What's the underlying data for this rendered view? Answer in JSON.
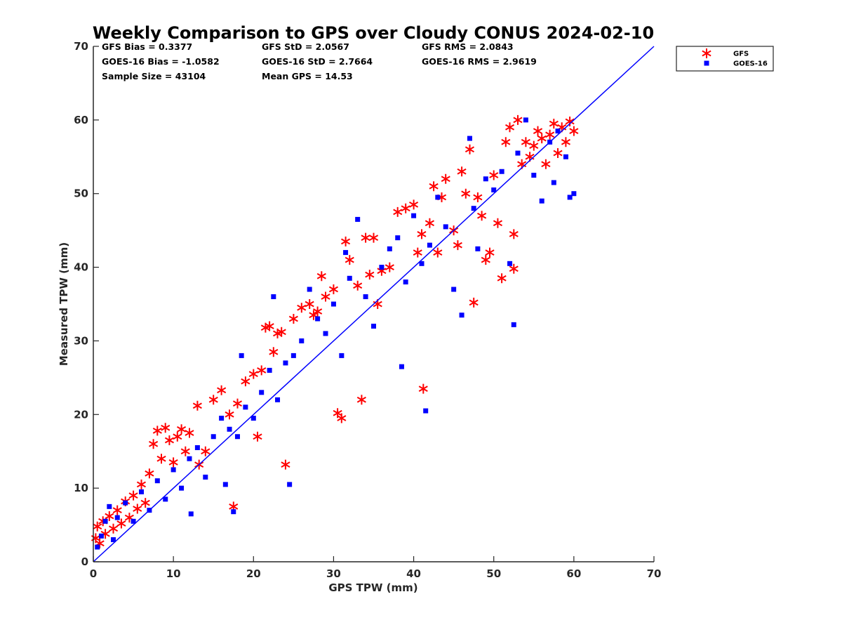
{
  "chart_data": {
    "type": "scatter",
    "title": "Weekly Comparison to GPS over Cloudy CONUS 2024-02-10",
    "xlabel": "GPS TPW (mm)",
    "ylabel": "Measured TPW (mm)",
    "xlim": [
      0,
      70
    ],
    "ylim": [
      0,
      70
    ],
    "xticks": [
      0,
      10,
      20,
      30,
      40,
      50,
      60,
      70
    ],
    "yticks": [
      0,
      10,
      20,
      30,
      40,
      50,
      60,
      70
    ],
    "grid": false,
    "legend_position": "outside-top-right",
    "reference_line": {
      "x": [
        0,
        70
      ],
      "y": [
        0,
        70
      ],
      "color": "#0000ff"
    },
    "stats": [
      [
        "GFS Bias = 0.3377",
        "GFS StD = 2.0567",
        "GFS RMS = 2.0843"
      ],
      [
        "GOES-16 Bias = -1.0582",
        "GOES-16 StD = 2.7664",
        "GOES-16 RMS = 2.9619"
      ],
      [
        "Sample Size = 43104",
        "Mean GPS = 14.53",
        ""
      ]
    ],
    "series": [
      {
        "name": "GFS",
        "marker": "asterisk",
        "color": "#ff0000",
        "points": [
          [
            0.3,
            3.2
          ],
          [
            0.5,
            4.8
          ],
          [
            0.8,
            2.5
          ],
          [
            1.2,
            5.5
          ],
          [
            1.5,
            3.8
          ],
          [
            2.0,
            6.2
          ],
          [
            2.5,
            4.5
          ],
          [
            3.0,
            7.0
          ],
          [
            3.5,
            5.2
          ],
          [
            4.0,
            8.2
          ],
          [
            4.5,
            6.0
          ],
          [
            5.0,
            9.0
          ],
          [
            5.5,
            7.2
          ],
          [
            6.0,
            10.5
          ],
          [
            6.5,
            8.0
          ],
          [
            7.0,
            12.0
          ],
          [
            7.5,
            16.0
          ],
          [
            8.0,
            17.8
          ],
          [
            8.5,
            14.0
          ],
          [
            9.0,
            18.2
          ],
          [
            9.5,
            16.5
          ],
          [
            10,
            13.5
          ],
          [
            10.5,
            17.0
          ],
          [
            11,
            18.0
          ],
          [
            11.5,
            15.0
          ],
          [
            12,
            17.5
          ],
          [
            13,
            21.2
          ],
          [
            13.2,
            13.2
          ],
          [
            14,
            15.0
          ],
          [
            15,
            22.0
          ],
          [
            16,
            23.3
          ],
          [
            17,
            20.0
          ],
          [
            17.5,
            7.5
          ],
          [
            18,
            21.5
          ],
          [
            19,
            24.5
          ],
          [
            20,
            25.5
          ],
          [
            20.5,
            17.0
          ],
          [
            21,
            26.0
          ],
          [
            21.5,
            31.8
          ],
          [
            22,
            32.0
          ],
          [
            22.5,
            28.5
          ],
          [
            23,
            31.0
          ],
          [
            23.5,
            31.2
          ],
          [
            24,
            13.2
          ],
          [
            25,
            33.0
          ],
          [
            26,
            34.5
          ],
          [
            27,
            35.0
          ],
          [
            27.5,
            33.5
          ],
          [
            28,
            34.0
          ],
          [
            28.5,
            38.8
          ],
          [
            29,
            36.0
          ],
          [
            30,
            37.0
          ],
          [
            30.5,
            20.2
          ],
          [
            31,
            19.5
          ],
          [
            31.5,
            43.5
          ],
          [
            32,
            41.0
          ],
          [
            33,
            37.5
          ],
          [
            33.5,
            22.0
          ],
          [
            34,
            44.0
          ],
          [
            34.5,
            39.0
          ],
          [
            35,
            44.0
          ],
          [
            35.5,
            35.0
          ],
          [
            36,
            39.5
          ],
          [
            37,
            40.0
          ],
          [
            38,
            47.5
          ],
          [
            39,
            48.0
          ],
          [
            40,
            48.5
          ],
          [
            40.5,
            42.0
          ],
          [
            41,
            44.5
          ],
          [
            41.2,
            23.5
          ],
          [
            42,
            46.0
          ],
          [
            42.5,
            51.0
          ],
          [
            43,
            42.0
          ],
          [
            43.5,
            49.5
          ],
          [
            44,
            52.0
          ],
          [
            45,
            45.0
          ],
          [
            45.5,
            43.0
          ],
          [
            46,
            53.0
          ],
          [
            46.5,
            50.0
          ],
          [
            47,
            56.0
          ],
          [
            47.5,
            35.2
          ],
          [
            48,
            49.5
          ],
          [
            48.5,
            47.0
          ],
          [
            49,
            41.0
          ],
          [
            49.5,
            42.0
          ],
          [
            50,
            52.5
          ],
          [
            50.5,
            46.0
          ],
          [
            51,
            38.5
          ],
          [
            51.5,
            57.0
          ],
          [
            52,
            59.0
          ],
          [
            52.5,
            44.5
          ],
          [
            52.5,
            39.8
          ],
          [
            53,
            60.0
          ],
          [
            53.5,
            54.0
          ],
          [
            54,
            57.0
          ],
          [
            54.5,
            55.0
          ],
          [
            55,
            56.5
          ],
          [
            55.5,
            58.5
          ],
          [
            56,
            57.5
          ],
          [
            56.5,
            54.0
          ],
          [
            57,
            58.0
          ],
          [
            57.5,
            59.5
          ],
          [
            58,
            55.5
          ],
          [
            58.5,
            59.0
          ],
          [
            59,
            57.0
          ],
          [
            59.5,
            59.8
          ],
          [
            60,
            58.5
          ]
        ]
      },
      {
        "name": "GOES-16",
        "marker": "square",
        "color": "#0000ff",
        "points": [
          [
            0.5,
            2.0
          ],
          [
            1.0,
            3.5
          ],
          [
            1.5,
            5.5
          ],
          [
            2.0,
            7.5
          ],
          [
            2.5,
            3.0
          ],
          [
            3.0,
            6.0
          ],
          [
            4.0,
            8.0
          ],
          [
            5.0,
            5.5
          ],
          [
            6.0,
            9.5
          ],
          [
            7.0,
            7.0
          ],
          [
            8.0,
            11.0
          ],
          [
            9.0,
            8.5
          ],
          [
            10,
            12.5
          ],
          [
            11,
            10.0
          ],
          [
            12,
            14.0
          ],
          [
            12.2,
            6.5
          ],
          [
            13,
            15.5
          ],
          [
            14,
            11.5
          ],
          [
            15,
            17.0
          ],
          [
            16,
            19.5
          ],
          [
            16.5,
            10.5
          ],
          [
            17,
            18.0
          ],
          [
            17.5,
            6.8
          ],
          [
            18,
            17.0
          ],
          [
            18.5,
            28.0
          ],
          [
            19,
            21.0
          ],
          [
            20,
            19.5
          ],
          [
            21,
            23.0
          ],
          [
            22,
            26.0
          ],
          [
            22.5,
            36.0
          ],
          [
            23,
            22.0
          ],
          [
            24,
            27.0
          ],
          [
            24.5,
            10.5
          ],
          [
            25,
            28.0
          ],
          [
            26,
            30.0
          ],
          [
            27,
            37.0
          ],
          [
            28,
            33.0
          ],
          [
            29,
            31.0
          ],
          [
            30,
            35.0
          ],
          [
            31,
            28.0
          ],
          [
            31.5,
            42.0
          ],
          [
            32,
            38.5
          ],
          [
            33,
            46.5
          ],
          [
            34,
            36.0
          ],
          [
            35,
            32.0
          ],
          [
            36,
            40.0
          ],
          [
            37,
            42.5
          ],
          [
            38,
            44.0
          ],
          [
            38.5,
            26.5
          ],
          [
            39,
            38.0
          ],
          [
            40,
            47.0
          ],
          [
            41,
            40.5
          ],
          [
            41.5,
            20.5
          ],
          [
            42,
            43.0
          ],
          [
            43,
            49.5
          ],
          [
            44,
            45.5
          ],
          [
            45,
            37.0
          ],
          [
            46,
            33.5
          ],
          [
            47,
            57.5
          ],
          [
            47.5,
            48.0
          ],
          [
            48,
            42.5
          ],
          [
            49,
            52.0
          ],
          [
            50,
            50.5
          ],
          [
            51,
            53.0
          ],
          [
            52,
            40.5
          ],
          [
            52.5,
            32.2
          ],
          [
            53,
            55.5
          ],
          [
            54,
            60.0
          ],
          [
            55,
            52.5
          ],
          [
            56,
            49.0
          ],
          [
            57,
            57.0
          ],
          [
            57.5,
            51.5
          ],
          [
            58,
            58.5
          ],
          [
            59,
            55.0
          ],
          [
            59.5,
            49.5
          ],
          [
            60,
            50.0
          ]
        ]
      }
    ]
  }
}
